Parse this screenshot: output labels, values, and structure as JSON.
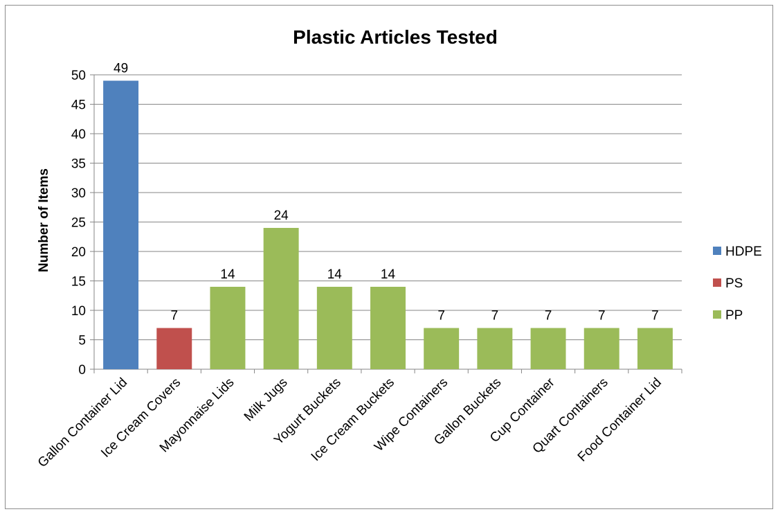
{
  "chart_data": {
    "type": "bar",
    "title": "Plastic Articles Tested",
    "ylabel": "Number of Items",
    "xlabel": "",
    "ylim": [
      0,
      50
    ],
    "ytick_step": 5,
    "grid": true,
    "legend_position": "right",
    "categories": [
      "Gallon Container Lid",
      "Ice Cream Covers",
      "Mayonnaise Lids",
      "Milk Jugs",
      "Yogurt Buckets",
      "Ice Cream Buckets",
      "Wipe Containers",
      "Gallon Buckets",
      "Cup Container",
      "Quart Containers",
      "Food Container Lid"
    ],
    "values": [
      49,
      7,
      14,
      24,
      14,
      14,
      7,
      7,
      7,
      7,
      7
    ],
    "groups": [
      "HDPE",
      "PS",
      "PP",
      "PP",
      "PP",
      "PP",
      "PP",
      "PP",
      "PP",
      "PP",
      "PP"
    ],
    "legend": [
      {
        "name": "HDPE",
        "color": "#4f81bd"
      },
      {
        "name": "PS",
        "color": "#c0504d"
      },
      {
        "name": "PP",
        "color": "#9bbb59"
      }
    ]
  }
}
